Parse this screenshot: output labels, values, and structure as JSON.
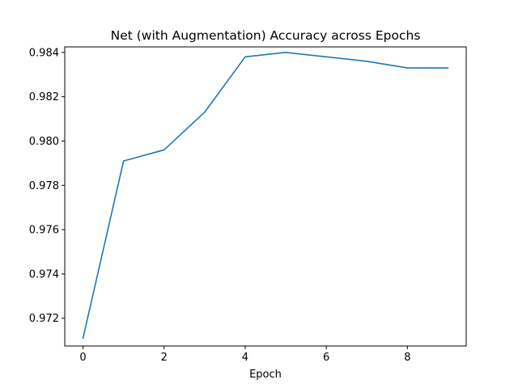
{
  "chart_data": {
    "type": "line",
    "title": "Net (with Augmentation) Accuracy across Epochs",
    "xlabel": "Epoch",
    "ylabel": "",
    "x": [
      0,
      1,
      2,
      3,
      4,
      5,
      6,
      7,
      8,
      9
    ],
    "xlim": [
      -0.45,
      9.45
    ],
    "ylim": [
      0.97075,
      0.98425
    ],
    "x_ticks": [
      0,
      2,
      4,
      6,
      8
    ],
    "x_tick_labels": [
      "0",
      "2",
      "4",
      "6",
      "8"
    ],
    "y_ticks": [
      0.972,
      0.974,
      0.976,
      0.978,
      0.98,
      0.982,
      0.984
    ],
    "y_tick_labels": [
      "0.972",
      "0.974",
      "0.976",
      "0.978",
      "0.980",
      "0.982",
      "0.984"
    ],
    "grid": false,
    "legend": "none",
    "series": [
      {
        "color": "#1f77b4",
        "values": [
          0.9711,
          0.9791,
          0.9796,
          0.9813,
          0.9838,
          0.984,
          0.9838,
          0.9836,
          0.9833,
          0.9833
        ]
      }
    ]
  }
}
